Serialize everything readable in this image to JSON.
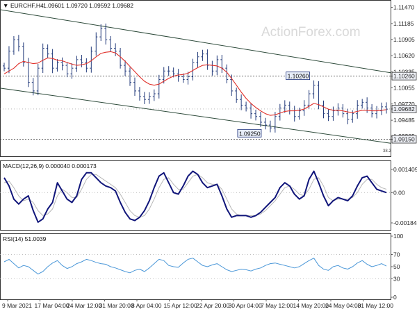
{
  "header": {
    "symbol": "EURCHF,H4",
    "ohlc": "1.09601 1.09720 1.09592 1.09682",
    "arrow": "▼"
  },
  "watermark": "ActionForex.com",
  "colors": {
    "candles": "#223a7a",
    "sma": "#e0302a",
    "channel": "#2d4a3a",
    "macd": "#10157a",
    "signal": "#b8b8b8",
    "rsi": "#4a97d8",
    "label_bg": "#e6ecf7",
    "label_border": "#1a2f7a",
    "grid": "#9a9a9a"
  },
  "chart_data": [
    {
      "type": "candlestick",
      "title": "EURCHF,H4",
      "ylim": [
        1.089,
        1.1155
      ],
      "x_tick_labels": [
        "9 Mar 2021",
        "17 Mar 04:00",
        "24 Mar 12:00",
        "31 Mar 20:00",
        "8 Apr 04:00",
        "15 Apr 12:00",
        "22 Apr 20:00",
        "30 Apr 04:00",
        "7 May 12:00",
        "14 May 20:00",
        "24 May 04:00",
        "31 May 12:00"
      ],
      "y_tick_labels": [
        "1.11470",
        "1.11185",
        "1.10905",
        "1.10620",
        "1.10335",
        "1.10260",
        "1.10055",
        "1.09770",
        "1.09682",
        "1.09485",
        "1.09205",
        "1.09150"
      ],
      "y_tick_values": [
        1.1147,
        1.11185,
        1.10905,
        1.1062,
        1.10335,
        1.1026,
        1.10055,
        1.0977,
        1.09682,
        1.09485,
        1.09205,
        1.0915
      ],
      "close_series": [
        1.104,
        1.107,
        1.109,
        1.1078,
        1.105,
        1.1015,
        1.1,
        1.104,
        1.1075,
        1.1065,
        1.104,
        1.105,
        1.1045,
        1.103,
        1.104,
        1.1055,
        1.105,
        1.104,
        1.107,
        1.1095,
        1.111,
        1.109,
        1.1075,
        1.107,
        1.1045,
        1.1035,
        1.1015,
        1.1,
        1.099,
        1.0985,
        1.099,
        1.0995,
        1.102,
        1.1035,
        1.1035,
        1.103,
        1.1025,
        1.102,
        1.1025,
        1.105,
        1.106,
        1.1065,
        1.1045,
        1.1035,
        1.1055,
        1.104,
        1.102,
        1.1,
        1.0985,
        1.0975,
        1.097,
        1.096,
        1.0955,
        1.0945,
        1.094,
        1.0935,
        1.0955,
        1.097,
        1.0975,
        1.0965,
        1.0955,
        1.0965,
        1.0975,
        1.0995,
        1.101,
        1.0975,
        1.096,
        1.0955,
        1.0965,
        1.097,
        1.096,
        1.095,
        1.096,
        1.0975,
        1.098,
        1.097,
        1.096,
        1.0965,
        1.0972,
        1.0968
      ],
      "sma_series": [
        1.103,
        1.1035,
        1.104,
        1.1048,
        1.1052,
        1.105,
        1.1048,
        1.1049,
        1.1054,
        1.1058,
        1.1057,
        1.1054,
        1.1053,
        1.105,
        1.1047,
        1.1045,
        1.1046,
        1.1048,
        1.1053,
        1.106,
        1.1066,
        1.1068,
        1.1069,
        1.1067,
        1.106,
        1.1052,
        1.1043,
        1.1034,
        1.1025,
        1.1017,
        1.1012,
        1.101,
        1.1012,
        1.1017,
        1.1022,
        1.1026,
        1.1028,
        1.1029,
        1.1031,
        1.1036,
        1.1041,
        1.1045,
        1.1046,
        1.1045,
        1.1044,
        1.104,
        1.1033,
        1.1022,
        1.101,
        1.0998,
        1.0987,
        1.0978,
        1.0971,
        1.0965,
        1.096,
        1.0957,
        1.0958,
        1.0961,
        1.0964,
        1.0965,
        1.0965,
        1.0966,
        1.0968,
        1.0973,
        1.0978,
        1.0976,
        1.0972,
        1.0968,
        1.0966,
        1.0966,
        1.0965,
        1.0963,
        1.0962,
        1.0964,
        1.0966,
        1.0966,
        1.0965,
        1.0965,
        1.0966,
        1.0967
      ],
      "channel_upper": [
        [
          0,
          1.1143
        ],
        [
          79,
          1.1032
        ]
      ],
      "channel_lower": [
        [
          0,
          1.1005
        ],
        [
          79,
          1.0908
        ]
      ],
      "levels": [
        {
          "value": 1.1026,
          "label": "1.10260",
          "dotted": true
        },
        {
          "value": 1.0915,
          "label": "1.09150",
          "dotted": true
        },
        {
          "value": 1.09682,
          "label": "1.09682",
          "dotted": false
        }
      ],
      "annotations": [
        {
          "text": "1.10260",
          "x_index": 64,
          "y": 1.1026
        },
        {
          "text": "1.09250",
          "x_index": 54,
          "y": 1.0925
        }
      ],
      "fib_note": "38.2"
    },
    {
      "type": "line",
      "title": "MACD(12,26,9) 0.000040 0.000173",
      "ylim": [
        -0.0021,
        0.0017
      ],
      "y_tick_labels": [
        "0.001409",
        "0.00",
        "-0.001846"
      ],
      "y_tick_values": [
        0.001409,
        0.0,
        -0.001846
      ],
      "series": [
        {
          "name": "MACD",
          "values": [
            0.0009,
            0.0004,
            -0.0004,
            -0.0007,
            -0.0004,
            -0.0002,
            -0.0011,
            -0.0018,
            -0.0016,
            -0.001,
            -0.0006,
            0.0006,
            0.0001,
            -0.0004,
            -0.0006,
            -0.0002,
            0.0008,
            0.0012,
            0.0012,
            0.0009,
            0.0006,
            0.0004,
            0.0003,
            0.0001,
            -0.0006,
            -0.0012,
            -0.0016,
            -0.0017,
            -0.0015,
            -0.0011,
            -0.0005,
            0.0003,
            0.001,
            0.0012,
            0.0006,
            0.0,
            -0.0001,
            0.0004,
            0.001,
            0.0013,
            0.0011,
            0.0006,
            0.0003,
            0.0004,
            0.0005,
            -0.0002,
            -0.001,
            -0.0015,
            -0.0014,
            -0.0014,
            -0.0014,
            -0.0015,
            -0.0014,
            -0.0012,
            -0.0009,
            -0.0006,
            -0.0003,
            0.0003,
            0.0006,
            0.0004,
            -0.0001,
            -0.0004,
            -0.0002,
            0.0008,
            0.0013,
            0.0006,
            -0.0002,
            -0.0008,
            -0.0005,
            -0.0003,
            -0.0004,
            -0.0005,
            -0.0002,
            0.0004,
            0.0009,
            0.001,
            0.0006,
            0.0002,
            0.0001,
            0.0
          ]
        },
        {
          "name": "Signal",
          "values": [
            0.0006,
            0.0007,
            0.0003,
            -0.0002,
            -0.0005,
            -0.0004,
            -0.0006,
            -0.0011,
            -0.0014,
            -0.0013,
            -0.001,
            -0.0002,
            0.0002,
            0.0,
            -0.0003,
            -0.0003,
            0.0002,
            0.0008,
            0.0011,
            0.0011,
            0.0009,
            0.0007,
            0.0005,
            0.0003,
            -0.0001,
            -0.0006,
            -0.0011,
            -0.0014,
            -0.0015,
            -0.0014,
            -0.001,
            -0.0004,
            0.0003,
            0.0008,
            0.0009,
            0.0005,
            0.0002,
            0.0002,
            0.0006,
            0.001,
            0.0011,
            0.0009,
            0.0006,
            0.0005,
            0.0005,
            0.0002,
            -0.0004,
            -0.001,
            -0.0013,
            -0.0014,
            -0.0014,
            -0.0014,
            -0.0014,
            -0.0013,
            -0.0011,
            -0.0008,
            -0.0005,
            -0.0001,
            0.0003,
            0.0004,
            0.0002,
            -0.0001,
            -0.0002,
            0.0002,
            0.0008,
            0.0009,
            0.0004,
            -0.0003,
            -0.0005,
            -0.0004,
            -0.0004,
            -0.0004,
            -0.0003,
            0.0,
            0.0005,
            0.0008,
            0.0008,
            0.0005,
            0.0003,
            0.0002
          ]
        }
      ]
    },
    {
      "type": "line",
      "title": "RSI(14) 51.0039",
      "ylim": [
        0,
        100
      ],
      "y_tick_labels": [
        "100",
        "70",
        "50",
        "30",
        "0"
      ],
      "y_tick_values": [
        100,
        70,
        50,
        30,
        0
      ],
      "reference_lines": [
        70,
        30
      ],
      "series": [
        {
          "name": "RSI(14)",
          "values": [
            58,
            62,
            55,
            48,
            52,
            50,
            44,
            38,
            42,
            50,
            56,
            60,
            52,
            47,
            50,
            55,
            58,
            62,
            60,
            57,
            55,
            54,
            50,
            48,
            45,
            42,
            40,
            44,
            46,
            42,
            48,
            55,
            62,
            60,
            52,
            50,
            49,
            56,
            62,
            64,
            58,
            52,
            50,
            53,
            55,
            50,
            45,
            42,
            44,
            46,
            45,
            43,
            46,
            48,
            52,
            55,
            56,
            54,
            52,
            50,
            48,
            50,
            55,
            60,
            64,
            52,
            46,
            44,
            50,
            52,
            48,
            46,
            50,
            56,
            60,
            54,
            50,
            52,
            55,
            51
          ]
        }
      ]
    }
  ]
}
